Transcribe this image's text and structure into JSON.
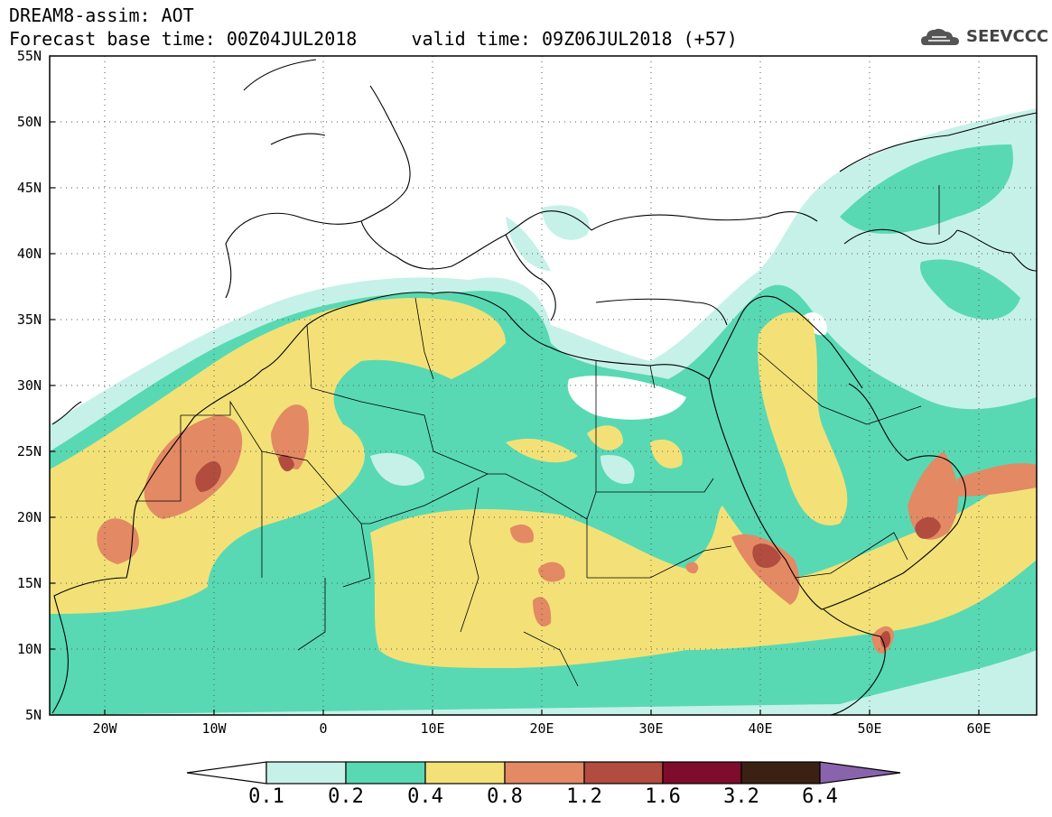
{
  "title": {
    "line1": "DREAM8-assim: AOT",
    "line2": "Forecast base time: 00Z04JUL2018     valid time: 09Z06JUL2018 (+57)"
  },
  "logo": {
    "text": "SEEVCCC",
    "icon": "cloud-icon"
  },
  "map": {
    "lon_range": [
      -25,
      65
    ],
    "lat_range": [
      5,
      55
    ],
    "x_ticks": [
      "20W",
      "10W",
      "0",
      "10E",
      "20E",
      "30E",
      "40E",
      "50E",
      "60E"
    ],
    "y_ticks": [
      "5N",
      "10N",
      "15N",
      "20N",
      "25N",
      "30N",
      "35N",
      "40N",
      "45N",
      "50N",
      "55N"
    ],
    "grid": "dotted"
  },
  "colorbar": {
    "levels": [
      "0.1",
      "0.2",
      "0.4",
      "0.8",
      "1.2",
      "1.6",
      "3.2",
      "6.4"
    ],
    "colors": [
      "#ffffff",
      "#c6f1e8",
      "#58d9b3",
      "#f3e177",
      "#e38964",
      "#b14c3e",
      "#7e0c2c",
      "#3b2114",
      "#8a63ad"
    ]
  }
}
